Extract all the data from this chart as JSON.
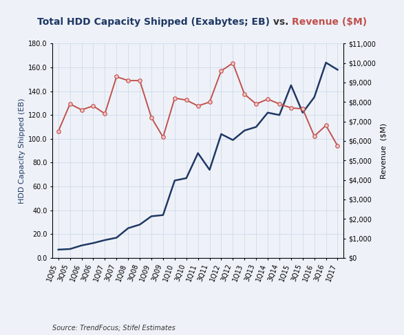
{
  "title_blue": "Total HDD Capacity Shipped (Exabytes; EB)",
  "title_mid": " vs. ",
  "title_red": "Revenue ($M)",
  "ylabel_left": "HDD Capacity Shipped (EB)",
  "ylabel_right": "Revenue  ($M)",
  "source": "Source: TrendFocus; Stifel Estimates",
  "background_color": "#eef2f8",
  "x_labels": [
    "1Q05",
    "3Q05",
    "1Q06",
    "3Q06",
    "1Q07",
    "3Q07",
    "1Q08",
    "3Q08",
    "1Q09",
    "3Q09",
    "1Q10",
    "3Q10",
    "1Q11",
    "3Q11",
    "1Q12",
    "3Q12",
    "1Q13",
    "3Q13",
    "1Q14",
    "3Q14",
    "1Q15",
    "3Q15",
    "1Q16",
    "3Q16",
    "1Q17"
  ],
  "hdd_capacity": [
    7.0,
    7.5,
    10.5,
    12.5,
    15.0,
    17.0,
    25.0,
    28.0,
    35.0,
    36.0,
    65.0,
    67.0,
    88.0,
    74.0,
    104.0,
    99.0,
    107.0,
    110.0,
    122.0,
    120.0,
    145.0,
    122.0,
    135.0,
    164.0,
    158.0
  ],
  "revenue": [
    6500,
    7900,
    7600,
    7800,
    7400,
    9300,
    9100,
    9100,
    7200,
    6200,
    8200,
    8100,
    7800,
    8000,
    9600,
    10000,
    8400,
    7900,
    8150,
    7900,
    7700,
    7650,
    6250,
    6800,
    5750
  ],
  "hdd_color": "#1f3864",
  "rev_color": "#c0504d",
  "rev_marker_face": "#f2c4c4",
  "rev_marker_edge": "#c0504d",
  "ylim_left": [
    0.0,
    180.0
  ],
  "ylim_right": [
    0,
    11000
  ],
  "yticks_left": [
    0.0,
    20.0,
    40.0,
    60.0,
    80.0,
    100.0,
    120.0,
    140.0,
    160.0,
    180.0
  ],
  "yticks_right": [
    0,
    1000,
    2000,
    3000,
    4000,
    5000,
    6000,
    7000,
    8000,
    9000,
    10000,
    11000
  ],
  "grid_color": "#c8d4e8",
  "title_fontsize": 10,
  "axis_label_fontsize": 8,
  "tick_fontsize": 7,
  "source_fontsize": 7
}
